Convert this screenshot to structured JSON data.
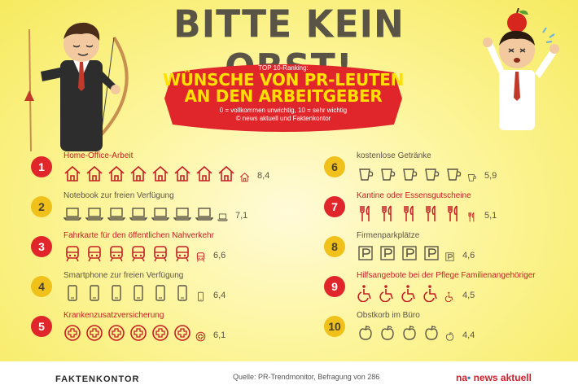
{
  "headline": "BITTE KEIN OBST!",
  "badge": {
    "kicker": "TOP 10-Ranking:",
    "title_line1": "WÜNSCHE VON PR-LEUTEN",
    "title_line2": "AN DEN ARBEITGEBER",
    "scale": "0 = vollkommen unwichtig, 10 = sehr wichtig",
    "credit": "© news aktuell und Faktenkontor"
  },
  "items": [
    {
      "rank": "1",
      "label": "Home-Office-Arbeit",
      "score": "8,4",
      "icon": "house-icon",
      "value": 8.4
    },
    {
      "rank": "2",
      "label": "Notebook zur freien Verfügung",
      "score": "7,1",
      "icon": "laptop-icon",
      "value": 7.1
    },
    {
      "rank": "3",
      "label": "Fahrkarte für den öffentlichen Nahverkehr",
      "score": "6,6",
      "icon": "train-icon",
      "value": 6.6
    },
    {
      "rank": "4",
      "label": "Smartphone zur freien Verfügung",
      "score": "6,4",
      "icon": "smartphone-icon",
      "value": 6.4
    },
    {
      "rank": "5",
      "label": "Krankenzusatzversicherung",
      "score": "6,1",
      "icon": "medical-cross-icon",
      "value": 6.1
    },
    {
      "rank": "6",
      "label": "kostenlose Getränke",
      "score": "5,9",
      "icon": "cup-icon",
      "value": 5.9
    },
    {
      "rank": "7",
      "label": "Kantine oder Essensgutscheine",
      "score": "5,1",
      "icon": "cutlery-icon",
      "value": 5.1
    },
    {
      "rank": "8",
      "label": "Firmenparkplätze",
      "score": "4,6",
      "icon": "parking-icon",
      "value": 4.6
    },
    {
      "rank": "9",
      "label": "Hilfsangebote bei der Pflege Familienangehöriger",
      "score": "4,5",
      "icon": "wheelchair-icon",
      "value": 4.5
    },
    {
      "rank": "10",
      "label": "Obstkorb im Büro",
      "score": "4,4",
      "icon": "apple-icon",
      "value": 4.4
    }
  ],
  "footer": {
    "faktenkontor": "FAKTENKONTOR",
    "source": "Quelle: PR-Trendmonitor, Befragung von 286",
    "newsaktuell_prefix": "na",
    "newsaktuell_name": "news aktuell"
  },
  "colors": {
    "red": "#e0262b",
    "gold": "#f0c11a",
    "text": "#5a5447"
  }
}
